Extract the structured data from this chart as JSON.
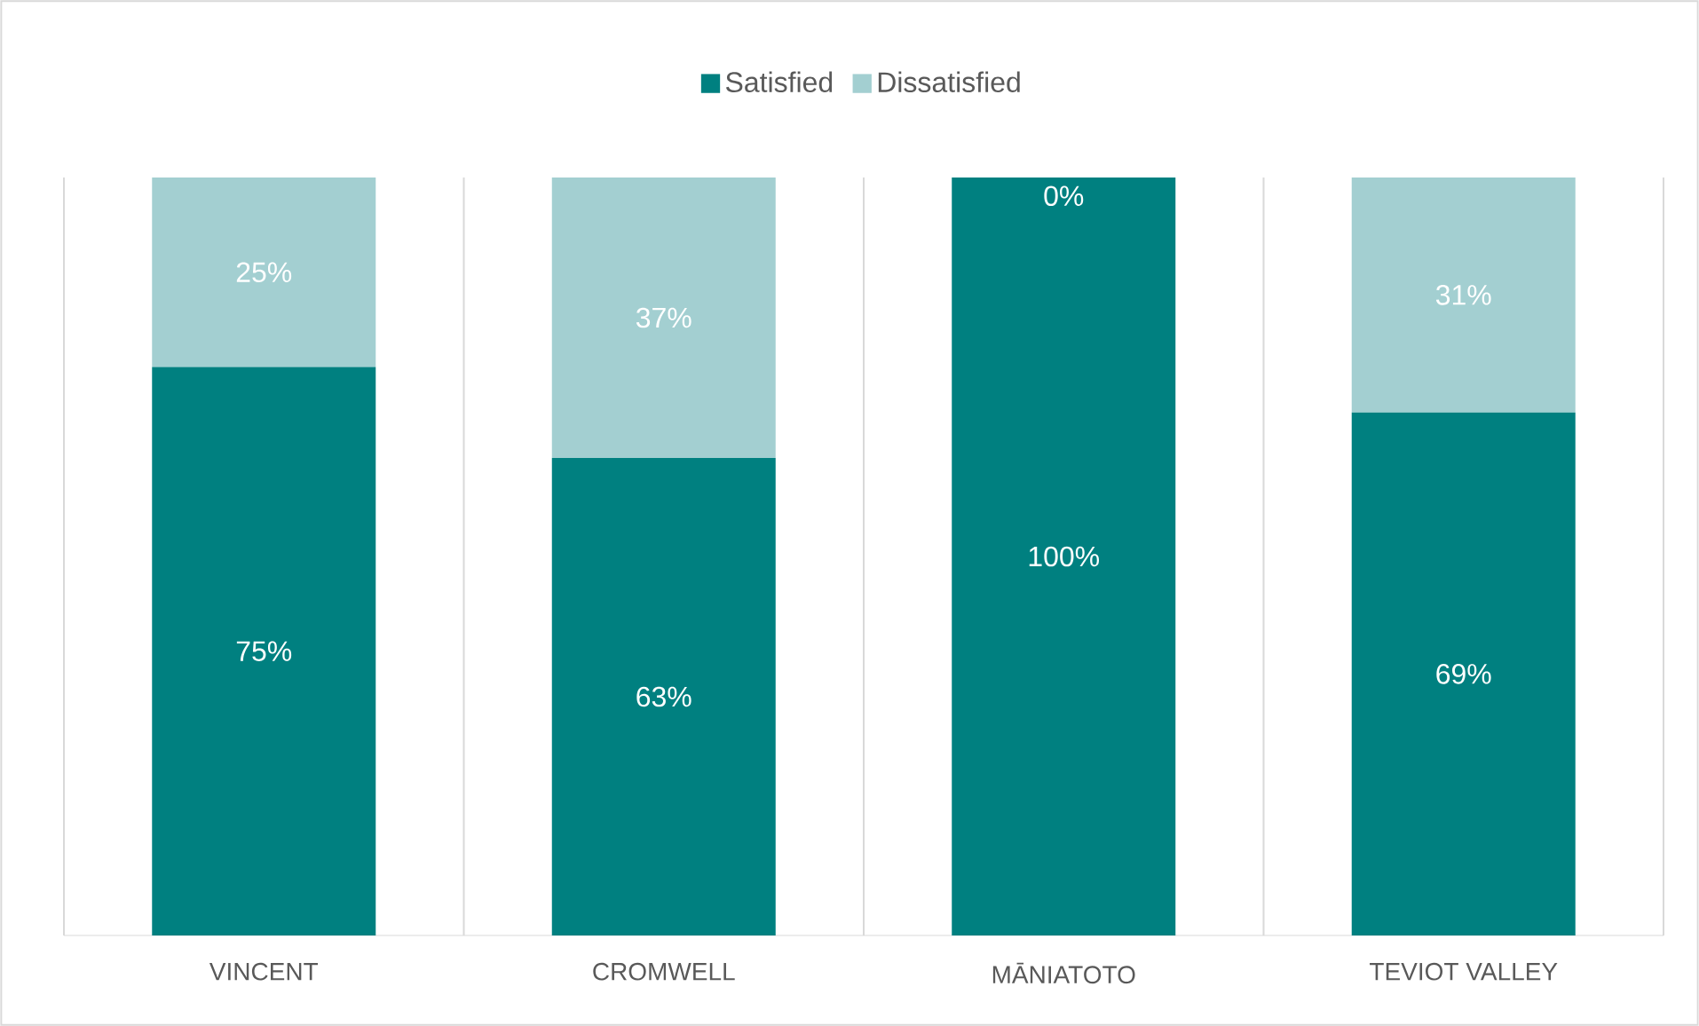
{
  "chart_data": {
    "type": "bar",
    "stacked": true,
    "categories": [
      "VINCENT",
      "CROMWELL",
      "MĀNIATOTO",
      "TEVIOT VALLEY"
    ],
    "series": [
      {
        "name": "Satisfied",
        "color": "#008080",
        "values": [
          75,
          63,
          100,
          69
        ],
        "value_labels": [
          "75%",
          "63%",
          "100%",
          "69%"
        ]
      },
      {
        "name": "Dissatisfied",
        "color": "#a3cfd1",
        "values": [
          25,
          37,
          0,
          31
        ],
        "value_labels": [
          "25%",
          "37%",
          "0%",
          "31%"
        ]
      }
    ],
    "grid": "x",
    "legend": "top"
  }
}
